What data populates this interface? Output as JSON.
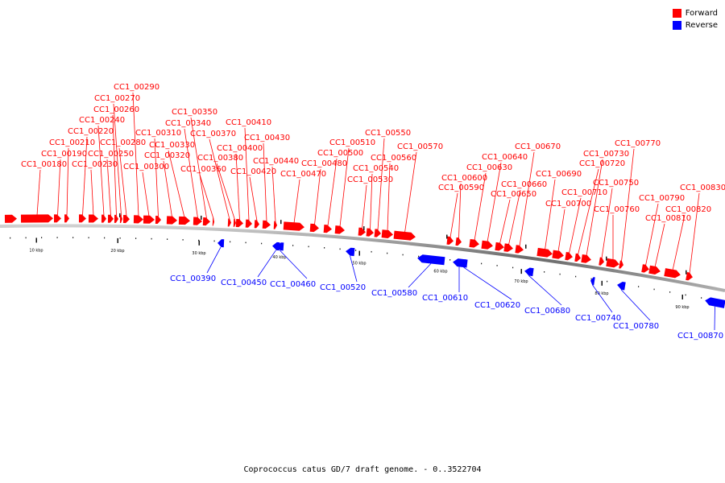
{
  "legend": {
    "forward_label": "Forward",
    "reverse_label": "Reverse",
    "forward_color": "#ff0000",
    "reverse_color": "#0000ff"
  },
  "caption": "Coprococcus catus GD/7 draft genome. - 0..3522704",
  "scale_labels": [
    "10 kbp",
    "20 kbp",
    "30 kbp",
    "40 kbp",
    "50 kbp",
    "60 kbp",
    "70 kbp",
    "80 kbp",
    "90 kbp"
  ],
  "genes": [
    {
      "strand": "forward",
      "name": ""
    },
    {
      "strand": "forward",
      "name": "CC1_00180"
    },
    {
      "strand": "forward",
      "name": "CC1_00190"
    },
    {
      "strand": "forward",
      "name": "CC1_00210"
    },
    {
      "strand": "forward",
      "name": "CC1_00220"
    },
    {
      "strand": "forward",
      "name": "CC1_00230"
    },
    {
      "strand": "forward",
      "name": "CC1_00240"
    },
    {
      "strand": "forward",
      "name": "CC1_00250"
    },
    {
      "strand": "forward",
      "name": "CC1_00260"
    },
    {
      "strand": "forward",
      "name": "CC1_00270"
    },
    {
      "strand": "forward",
      "name": "CC1_00280"
    },
    {
      "strand": "forward",
      "name": "CC1_00290"
    },
    {
      "strand": "forward",
      "name": "CC1_00300"
    },
    {
      "strand": "forward",
      "name": "CC1_00310"
    },
    {
      "strand": "forward",
      "name": "CC1_00320"
    },
    {
      "strand": "forward",
      "name": "CC1_00330"
    },
    {
      "strand": "forward",
      "name": "CC1_00340"
    },
    {
      "strand": "forward",
      "name": "CC1_00350"
    },
    {
      "strand": "forward",
      "name": "CC1_00360"
    },
    {
      "strand": "forward",
      "name": "CC1_00370"
    },
    {
      "strand": "forward",
      "name": "CC1_00380"
    },
    {
      "strand": "reverse",
      "name": "CC1_00390"
    },
    {
      "strand": "forward",
      "name": "CC1_00400"
    },
    {
      "strand": "forward",
      "name": "CC1_00410"
    },
    {
      "strand": "forward",
      "name": "CC1_00420"
    },
    {
      "strand": "forward",
      "name": "CC1_00430"
    },
    {
      "strand": "forward",
      "name": "CC1_00440"
    },
    {
      "strand": "reverse",
      "name": "CC1_00450"
    },
    {
      "strand": "reverse",
      "name": "CC1_00460"
    },
    {
      "strand": "forward",
      "name": "CC1_00470"
    },
    {
      "strand": "forward",
      "name": "CC1_00480"
    },
    {
      "strand": "forward",
      "name": "CC1_00500"
    },
    {
      "strand": "forward",
      "name": "CC1_00510"
    },
    {
      "strand": "reverse",
      "name": "CC1_00520"
    },
    {
      "strand": "forward",
      "name": "CC1_00530"
    },
    {
      "strand": "forward",
      "name": "CC1_00540"
    },
    {
      "strand": "forward",
      "name": "CC1_00550"
    },
    {
      "strand": "forward",
      "name": "CC1_00560"
    },
    {
      "strand": "forward",
      "name": "CC1_00570"
    },
    {
      "strand": "reverse",
      "name": "CC1_00580"
    },
    {
      "strand": "forward",
      "name": "CC1_00590"
    },
    {
      "strand": "forward",
      "name": "CC1_00600"
    },
    {
      "strand": "reverse",
      "name": "CC1_00610"
    },
    {
      "strand": "reverse",
      "name": "CC1_00620"
    },
    {
      "strand": "forward",
      "name": "CC1_00630"
    },
    {
      "strand": "forward",
      "name": "CC1_00640"
    },
    {
      "strand": "forward",
      "name": "CC1_00650"
    },
    {
      "strand": "forward",
      "name": "CC1_00660"
    },
    {
      "strand": "forward",
      "name": "CC1_00670"
    },
    {
      "strand": "reverse",
      "name": "CC1_00680"
    },
    {
      "strand": "forward",
      "name": "CC1_00690"
    },
    {
      "strand": "forward",
      "name": "CC1_00700"
    },
    {
      "strand": "forward",
      "name": "CC1_00710"
    },
    {
      "strand": "forward",
      "name": "CC1_00720"
    },
    {
      "strand": "forward",
      "name": "CC1_00730"
    },
    {
      "strand": "reverse",
      "name": "CC1_00740"
    },
    {
      "strand": "forward",
      "name": "CC1_00750"
    },
    {
      "strand": "forward",
      "name": "CC1_00760"
    },
    {
      "strand": "forward",
      "name": "CC1_00770"
    },
    {
      "strand": "reverse",
      "name": "CC1_00780"
    },
    {
      "strand": "forward",
      "name": "CC1_00790"
    },
    {
      "strand": "forward",
      "name": "CC1_00810"
    },
    {
      "strand": "forward",
      "name": "CC1_00820"
    },
    {
      "strand": "forward",
      "name": "CC1_00830"
    },
    {
      "strand": "reverse",
      "name": "CC1_00870"
    }
  ]
}
